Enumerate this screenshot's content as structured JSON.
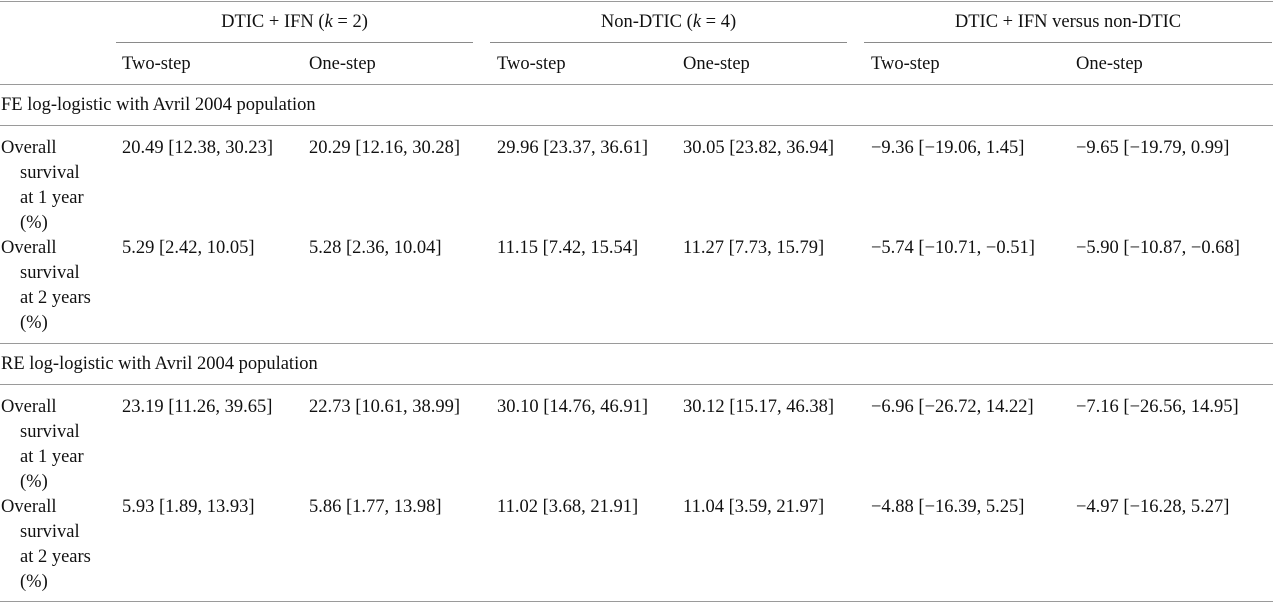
{
  "header": {
    "groups": [
      {
        "label_pre": "DTIC + IFN (",
        "k_symbol": "k",
        "label_post": " = 2)"
      },
      {
        "label_pre": "Non-DTIC (",
        "k_symbol": "k",
        "label_post": " = 4)"
      },
      {
        "label_pre": "DTIC + IFN versus non-DTIC",
        "k_symbol": "",
        "label_post": ""
      }
    ],
    "subheaders": [
      "Two-step",
      "One-step",
      "Two-step",
      "One-step",
      "Two-step",
      "One-step"
    ]
  },
  "sections": [
    {
      "title": "FE log-logistic with Avril 2004 population",
      "rows": [
        {
          "label_lines": [
            "Overall",
            "survival",
            "at 1 year",
            "(%)"
          ],
          "cells": [
            "20.49 [12.38, 30.23]",
            "20.29 [12.16, 30.28]",
            "29.96 [23.37, 36.61]",
            "30.05 [23.82, 36.94]",
            "−9.36 [−19.06, 1.45]",
            "−9.65 [−19.79, 0.99]"
          ]
        },
        {
          "label_lines": [
            "Overall",
            "survival",
            "at 2 years",
            "(%)"
          ],
          "cells": [
            "5.29 [2.42, 10.05]",
            "5.28 [2.36, 10.04]",
            "11.15 [7.42, 15.54]",
            "11.27 [7.73, 15.79]",
            "−5.74 [−10.71, −0.51]",
            "−5.90 [−10.87, −0.68]"
          ]
        }
      ]
    },
    {
      "title": "RE log-logistic with Avril 2004 population",
      "rows": [
        {
          "label_lines": [
            "Overall",
            "survival",
            "at 1 year",
            "(%)"
          ],
          "cells": [
            "23.19 [11.26, 39.65]",
            "22.73 [10.61, 38.99]",
            "30.10 [14.76, 46.91]",
            "30.12 [15.17, 46.38]",
            "−6.96 [−26.72, 14.22]",
            "−7.16 [−26.56, 14.95]"
          ]
        },
        {
          "label_lines": [
            "Overall",
            "survival",
            "at 2 years",
            "(%)"
          ],
          "cells": [
            "5.93 [1.89, 13.93]",
            "5.86 [1.77, 13.98]",
            "11.02 [3.68, 21.91]",
            "11.04 [3.59, 21.97]",
            "−4.88 [−16.39, 5.25]",
            "−4.97 [−16.28, 5.27]"
          ]
        }
      ]
    }
  ]
}
